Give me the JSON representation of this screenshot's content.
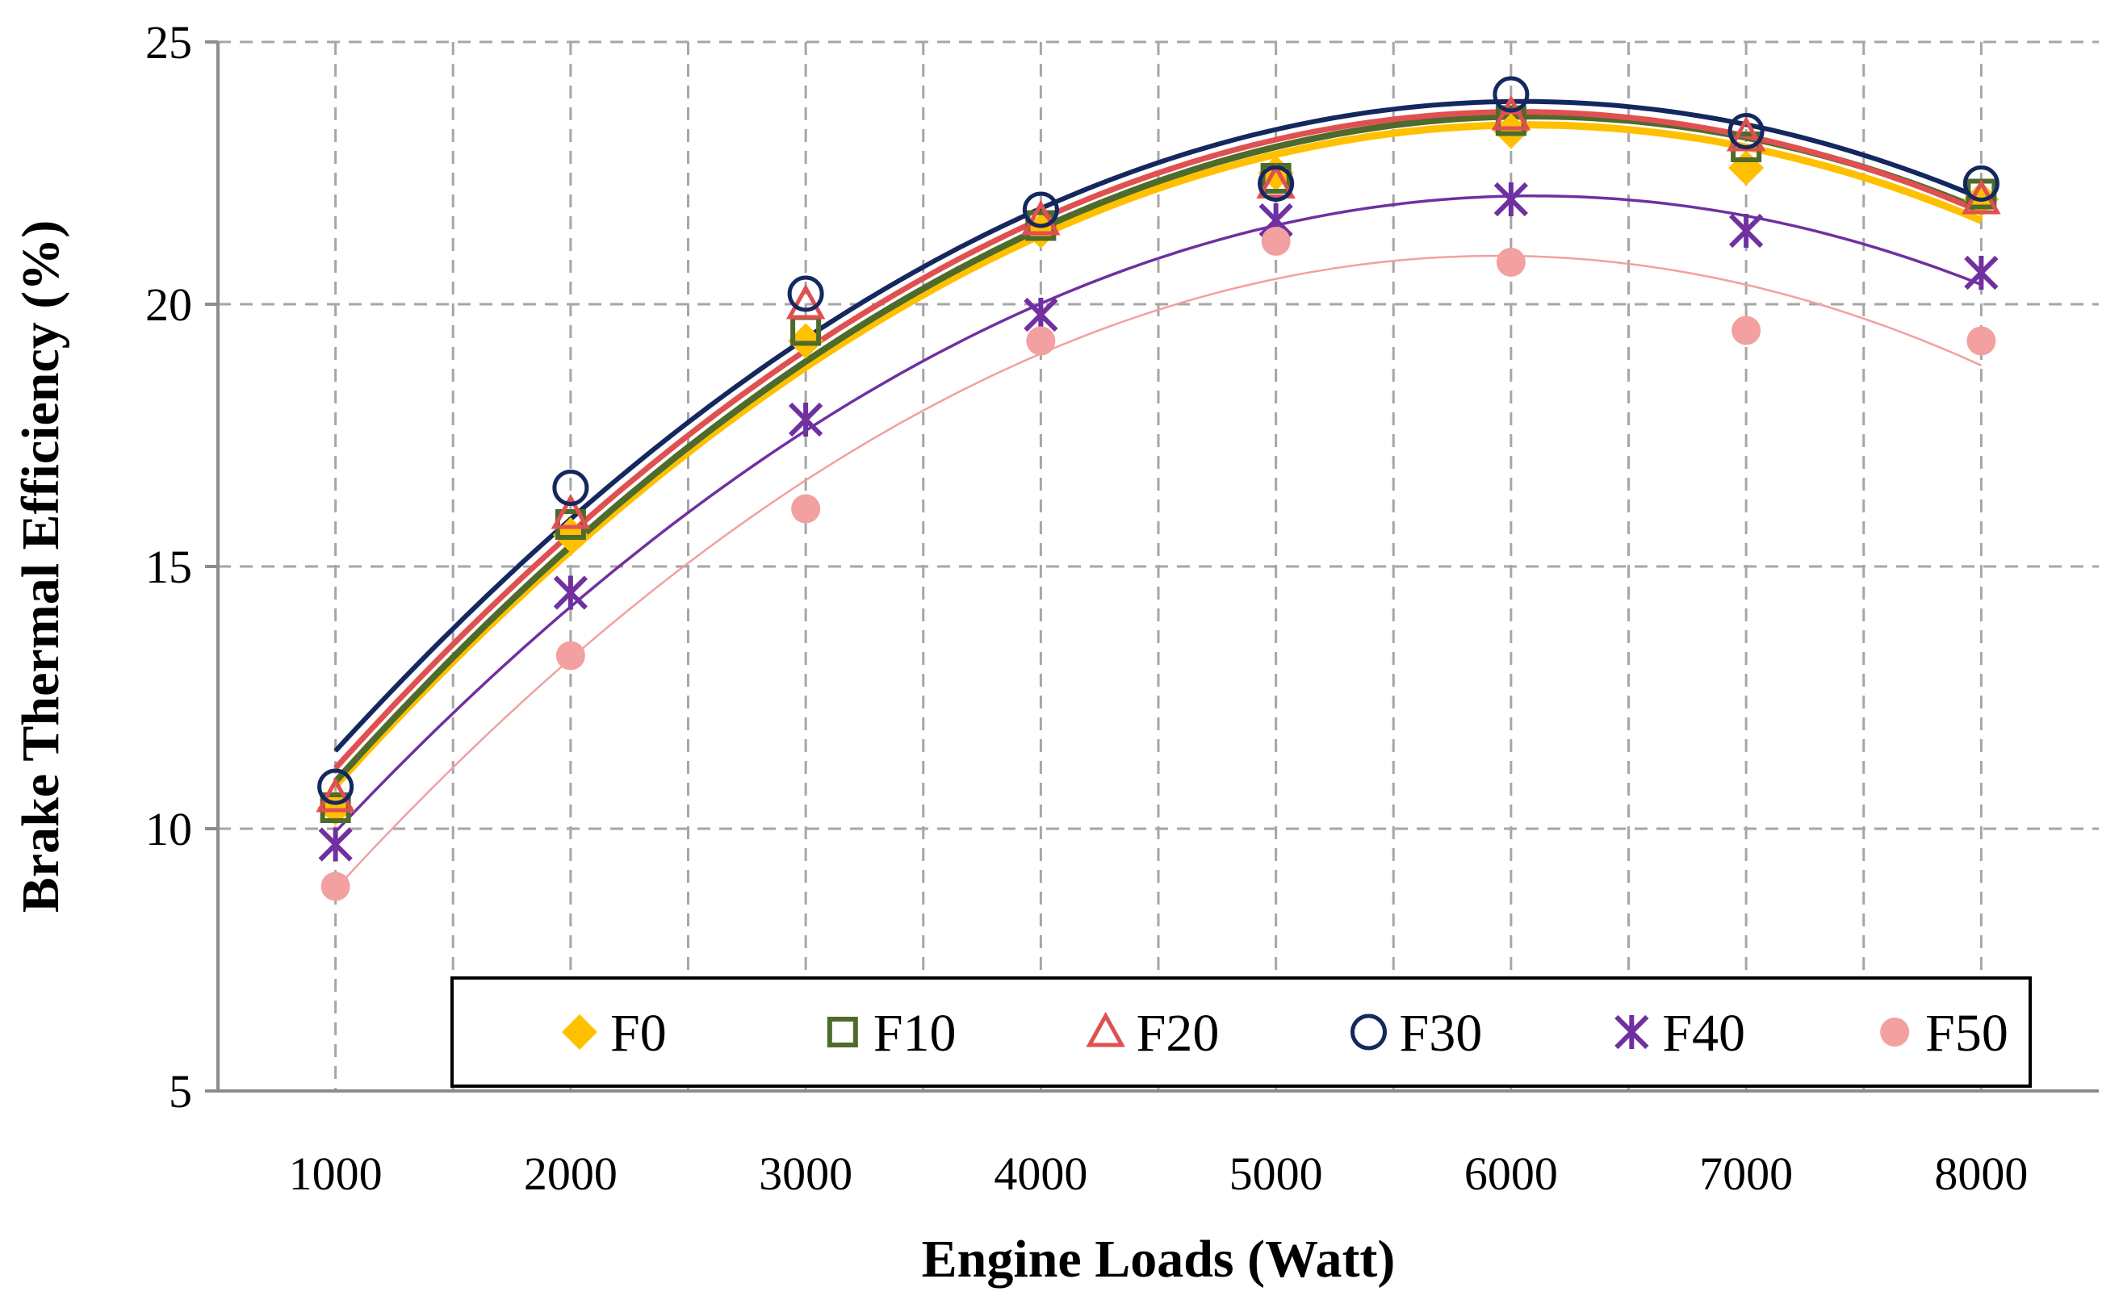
{
  "chart_data": {
    "type": "scatter",
    "title": "",
    "xlabel": "Engine Loads (Watt)",
    "ylabel": "Brake Thermal Efficiency (%)",
    "xlim": [
      500,
      8500
    ],
    "ylim": [
      5,
      25
    ],
    "x_ticks": [
      1000,
      2000,
      3000,
      4000,
      5000,
      6000,
      7000,
      8000
    ],
    "y_ticks": [
      5,
      10,
      15,
      20,
      25
    ],
    "grid": true,
    "legend_position": "bottom-right",
    "trendline": "polynomial (order 2)",
    "x": [
      1000,
      2000,
      3000,
      4000,
      5000,
      6000,
      7000,
      8000
    ],
    "series": [
      {
        "name": "F0",
        "marker": "diamond",
        "color": "#FFC000",
        "values": [
          10.4,
          15.6,
          19.3,
          21.4,
          22.5,
          23.3,
          22.6,
          22.0
        ]
      },
      {
        "name": "F10",
        "marker": "square",
        "color": "#4E6B2C",
        "values": [
          10.4,
          15.8,
          19.5,
          21.5,
          22.4,
          23.5,
          23.0,
          22.1
        ]
      },
      {
        "name": "F20",
        "marker": "triangle",
        "color": "#E05050",
        "values": [
          10.6,
          16.0,
          20.0,
          21.6,
          22.3,
          23.6,
          23.2,
          22.0
        ]
      },
      {
        "name": "F30",
        "marker": "circle",
        "color": "#14285F",
        "values": [
          10.8,
          16.5,
          20.2,
          21.8,
          22.3,
          24.0,
          23.3,
          22.3
        ]
      },
      {
        "name": "F40",
        "marker": "x-star",
        "color": "#7030A0",
        "values": [
          9.7,
          14.5,
          17.8,
          19.8,
          21.6,
          22.0,
          21.4,
          20.6
        ]
      },
      {
        "name": "F50",
        "marker": "dot",
        "color": "#F2A0A0",
        "values": [
          8.9,
          13.3,
          16.1,
          19.3,
          21.2,
          20.8,
          19.5,
          19.3
        ]
      }
    ]
  }
}
